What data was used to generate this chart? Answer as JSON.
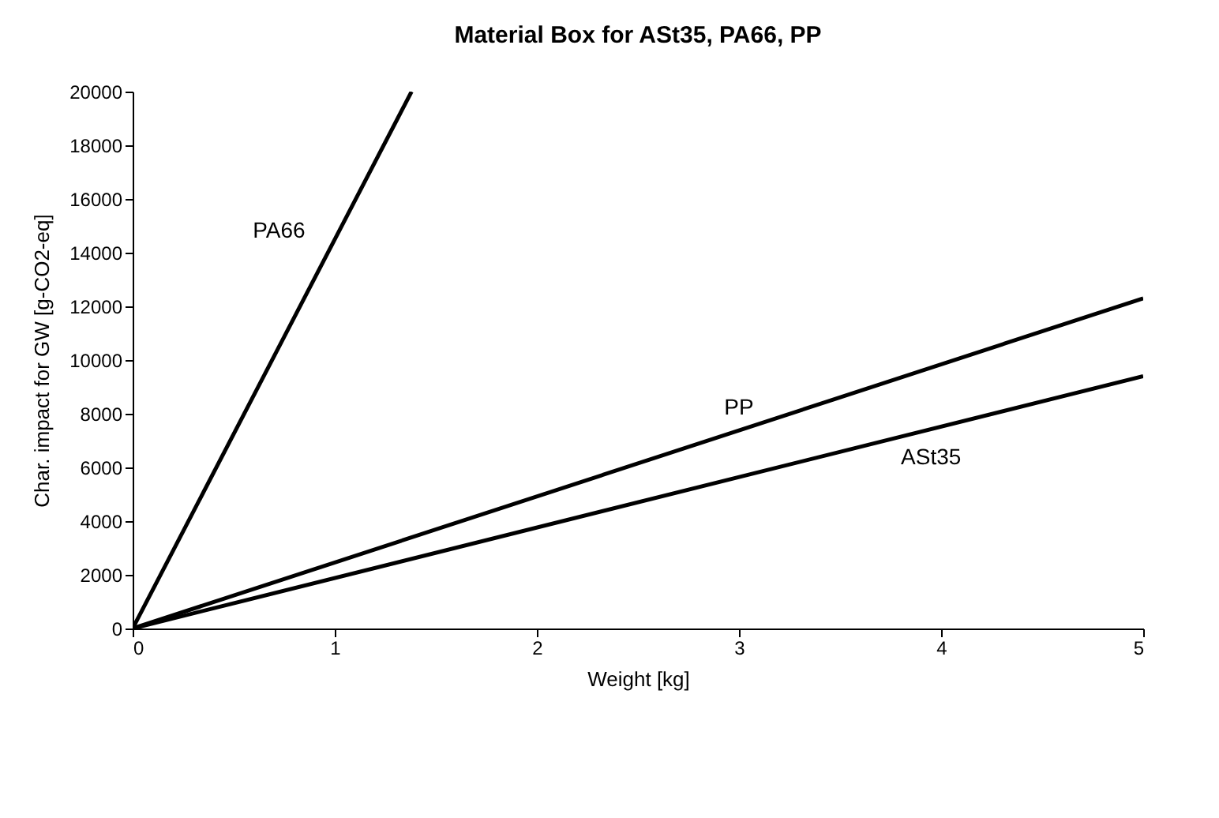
{
  "chart_data": {
    "type": "line",
    "title": "Material Box for ASt35, PA66, PP",
    "xlabel": "Weight [kg]",
    "ylabel": "Char. impact for GW [g-CO2-eq]",
    "series": [
      {
        "name": "PA66",
        "color": "#000000",
        "x": [
          0,
          1.38
        ],
        "values": [
          0,
          20000
        ]
      },
      {
        "name": "PP",
        "color": "#000000",
        "x": [
          0,
          5
        ],
        "values": [
          0,
          12300
        ]
      },
      {
        "name": "ASt35",
        "color": "#000000",
        "x": [
          0,
          5
        ],
        "values": [
          0,
          9400
        ]
      }
    ],
    "xlim": [
      0,
      5
    ],
    "xticks": [
      0,
      1,
      2,
      3,
      4,
      5
    ],
    "ylim": [
      0,
      20000
    ],
    "yticks": [
      0,
      2000,
      4000,
      6000,
      8000,
      10000,
      12000,
      14000,
      16000,
      18000,
      20000
    ],
    "grid": false,
    "legend": false,
    "marker": "none",
    "line_style": "solid"
  }
}
